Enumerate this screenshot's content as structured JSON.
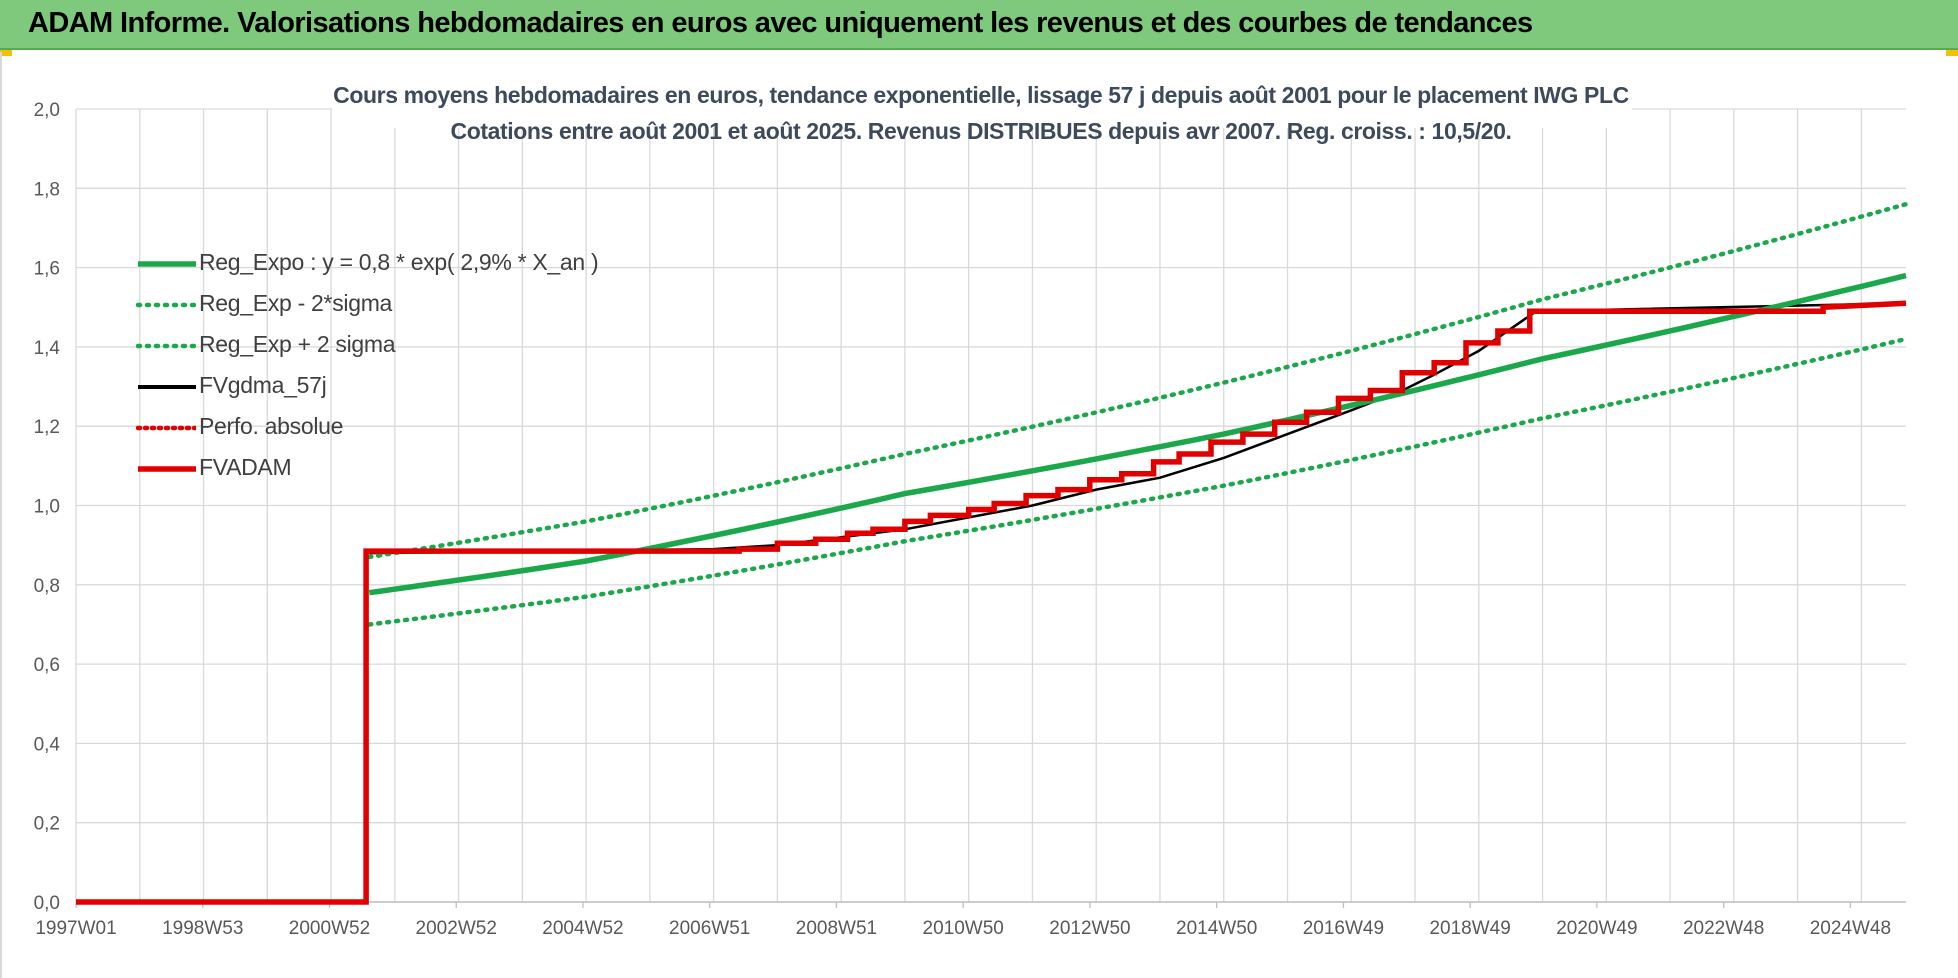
{
  "header": {
    "title": "ADAM Informe. Valorisations hebdomadaires en euros avec uniquement les revenus et des courbes de tendances"
  },
  "colors": {
    "header_bg": "#7ec97b",
    "reg_green": "#1aa84a",
    "fvadam_red": "#e00000",
    "fvgdma_black": "#000000",
    "title_text": "#3d4a5c"
  },
  "chart_data": {
    "type": "line",
    "title_line1": "Cours moyens hebdomadaires en euros, tendance exponentielle, lissage 57 j depuis août 2001 pour le placement IWG PLC",
    "title_line2": "Cotations entre août 2001 et août 2025. Revenus DISTRIBUES depuis avr 2007. Reg. croiss. : 10,5/20.",
    "x_tick_labels": [
      "1997W01",
      "1998W53",
      "2000W52",
      "2002W52",
      "2004W52",
      "2006W51",
      "2008W51",
      "2010W50",
      "2012W50",
      "2014W50",
      "2016W49",
      "2018W49",
      "2020W49",
      "2022W48",
      "2024W48"
    ],
    "x_range": [
      1997.0,
      2025.7
    ],
    "y_ticks": [
      "0,0",
      "0,2",
      "0,4",
      "0,6",
      "0,8",
      "1,0",
      "1,2",
      "1,4",
      "1,6",
      "1,8",
      "2,0"
    ],
    "ylim": [
      0,
      2.0
    ],
    "grid": true,
    "legend_position": "top-left",
    "series": [
      {
        "name": "Reg_Expo : y = 0,8 * exp( 2,9% *  X_an )",
        "style": "solid",
        "color": "#1aa84a",
        "x": [
          2001.6,
          2005.0,
          2010.0,
          2015.0,
          2020.0,
          2025.7
        ],
        "y": [
          0.78,
          0.86,
          1.03,
          1.18,
          1.37,
          1.58
        ]
      },
      {
        "name": "Reg_Exp - 2*sigma",
        "style": "dotted",
        "color": "#1aa84a",
        "x": [
          2001.6,
          2005.0,
          2010.0,
          2015.0,
          2020.0,
          2025.7
        ],
        "y": [
          0.7,
          0.77,
          0.91,
          1.05,
          1.22,
          1.42
        ]
      },
      {
        "name": "Reg_Exp + 2 sigma",
        "style": "dotted",
        "color": "#1aa84a",
        "x": [
          2001.6,
          2005.0,
          2010.0,
          2015.0,
          2020.0,
          2025.7
        ],
        "y": [
          0.87,
          0.96,
          1.13,
          1.31,
          1.52,
          1.76
        ]
      },
      {
        "name": "FVgdma_57j",
        "style": "solid-thin",
        "color": "#000000",
        "x": [
          2001.6,
          2007.0,
          2008.0,
          2009.0,
          2010.0,
          2011.0,
          2012.0,
          2013.0,
          2014.0,
          2015.0,
          2016.0,
          2017.0,
          2017.8,
          2018.3,
          2019.0,
          2019.9,
          2025.7
        ],
        "y": [
          0.88,
          0.89,
          0.9,
          0.92,
          0.94,
          0.97,
          1.0,
          1.04,
          1.07,
          1.12,
          1.18,
          1.24,
          1.29,
          1.33,
          1.39,
          1.49,
          1.51
        ]
      },
      {
        "name": "Perfo. absolue",
        "style": "dotted",
        "color": "#e00000",
        "x": [],
        "y": []
      },
      {
        "name": "FVADAM",
        "style": "solid-thick",
        "color": "#e00000",
        "x": [
          1997.0,
          2001.55,
          2001.55,
          2007.0,
          2007.4,
          2007.4,
          2008.0,
          2008.0,
          2008.6,
          2008.6,
          2009.1,
          2009.1,
          2009.5,
          2009.5,
          2010.0,
          2010.0,
          2010.4,
          2010.4,
          2011.0,
          2011.0,
          2011.4,
          2011.4,
          2011.9,
          2011.9,
          2012.4,
          2012.4,
          2012.9,
          2012.9,
          2013.4,
          2013.4,
          2013.9,
          2013.9,
          2014.3,
          2014.3,
          2014.8,
          2014.8,
          2015.3,
          2015.3,
          2015.8,
          2015.8,
          2016.3,
          2016.3,
          2016.8,
          2016.8,
          2017.3,
          2017.3,
          2017.8,
          2017.8,
          2018.3,
          2018.3,
          2018.8,
          2018.8,
          2019.3,
          2019.3,
          2019.8,
          2019.8,
          2024.4,
          2024.4,
          2025.7
        ],
        "y": [
          0.0,
          0.0,
          0.885,
          0.885,
          0.885,
          0.89,
          0.89,
          0.905,
          0.905,
          0.915,
          0.915,
          0.93,
          0.93,
          0.94,
          0.94,
          0.96,
          0.96,
          0.975,
          0.975,
          0.99,
          0.99,
          1.005,
          1.005,
          1.025,
          1.025,
          1.04,
          1.04,
          1.065,
          1.065,
          1.08,
          1.08,
          1.11,
          1.11,
          1.13,
          1.13,
          1.16,
          1.16,
          1.18,
          1.18,
          1.21,
          1.21,
          1.235,
          1.235,
          1.27,
          1.27,
          1.29,
          1.29,
          1.335,
          1.335,
          1.36,
          1.36,
          1.41,
          1.41,
          1.44,
          1.44,
          1.49,
          1.49,
          1.5,
          1.51
        ]
      }
    ]
  }
}
